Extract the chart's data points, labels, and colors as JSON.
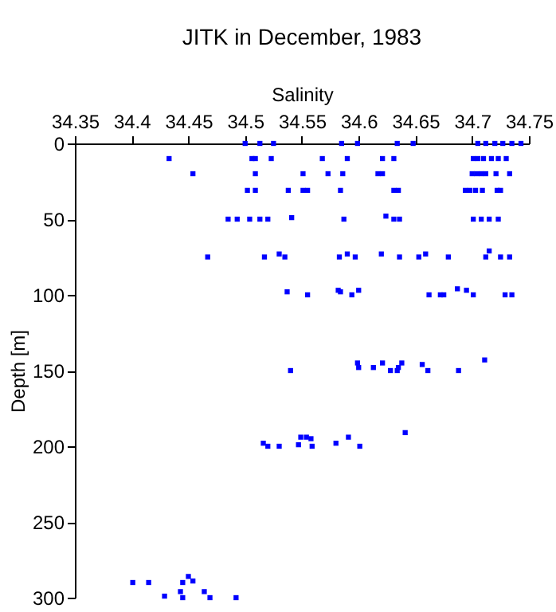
{
  "chart_data": {
    "type": "scatter",
    "title": "JITK in December, 1983",
    "xlabel": "Salinity",
    "ylabel": "Depth [m]",
    "xlim": [
      34.35,
      34.75
    ],
    "xticks": [
      34.35,
      34.4,
      34.45,
      34.5,
      34.55,
      34.6,
      34.65,
      34.7,
      34.75
    ],
    "ylim": [
      300,
      0
    ],
    "yticks": [
      0,
      50,
      100,
      150,
      200,
      250,
      300
    ],
    "marker": "square",
    "grid": false,
    "series": [
      {
        "color": "#0000ff",
        "x": [
          34.5,
          34.513,
          34.525,
          34.585,
          34.599,
          34.634,
          34.648,
          34.705,
          34.712,
          34.72,
          34.727,
          34.735,
          34.743,
          34.433,
          34.506,
          34.509,
          34.523,
          34.568,
          34.59,
          34.621,
          34.631,
          34.701,
          34.705,
          34.71,
          34.717,
          34.723,
          34.73,
          34.454,
          34.509,
          34.551,
          34.573,
          34.586,
          34.617,
          34.621,
          34.7,
          34.704,
          34.708,
          34.712,
          34.721,
          34.733,
          34.502,
          34.509,
          34.538,
          34.551,
          34.555,
          34.584,
          34.631,
          34.635,
          34.694,
          34.698,
          34.703,
          34.709,
          34.722,
          34.725,
          34.485,
          34.493,
          34.504,
          34.513,
          34.52,
          34.541,
          34.587,
          34.624,
          34.631,
          34.636,
          34.701,
          34.708,
          34.715,
          34.723,
          34.467,
          34.517,
          34.53,
          34.535,
          34.583,
          34.59,
          34.597,
          34.62,
          34.636,
          34.653,
          34.659,
          34.679,
          34.712,
          34.715,
          34.725,
          34.733,
          34.537,
          34.555,
          34.582,
          34.584,
          34.594,
          34.6,
          34.662,
          34.672,
          34.675,
          34.687,
          34.695,
          34.701,
          34.729,
          34.735,
          34.54,
          34.599,
          34.6,
          34.613,
          34.621,
          34.628,
          34.634,
          34.635,
          34.638,
          34.656,
          34.661,
          34.688,
          34.711,
          34.516,
          34.52,
          34.53,
          34.547,
          34.549,
          34.554,
          34.558,
          34.559,
          34.58,
          34.591,
          34.601,
          34.641,
          34.401,
          34.415,
          34.429,
          34.443,
          34.445,
          34.445,
          34.45,
          34.454,
          34.464,
          34.469,
          34.492
        ],
        "values": [
          0,
          0,
          0,
          0,
          0,
          0,
          0,
          0,
          0,
          0,
          0,
          0,
          0,
          10,
          10,
          10,
          10,
          10,
          10,
          10,
          10,
          10,
          10,
          10,
          10,
          10,
          10,
          20,
          20,
          20,
          20,
          20,
          20,
          20,
          20,
          20,
          20,
          20,
          20,
          20,
          31,
          31,
          31,
          31,
          31,
          31,
          31,
          31,
          31,
          31,
          31,
          31,
          31,
          31,
          50,
          50,
          50,
          50,
          50,
          49,
          50,
          48,
          50,
          50,
          50,
          50,
          50,
          50,
          75,
          75,
          73,
          75,
          75,
          73,
          75,
          73,
          75,
          75,
          73,
          75,
          75,
          71,
          75,
          75,
          98,
          100,
          97,
          98,
          100,
          97,
          100,
          100,
          100,
          96,
          97,
          100,
          100,
          100,
          150,
          145,
          148,
          148,
          145,
          150,
          150,
          148,
          145,
          146,
          150,
          150,
          143,
          198,
          200,
          200,
          199,
          194,
          194,
          195,
          200,
          198,
          194,
          200,
          191,
          290,
          290,
          299,
          296,
          300,
          290,
          286,
          289,
          296,
          300,
          300
        ]
      }
    ]
  }
}
